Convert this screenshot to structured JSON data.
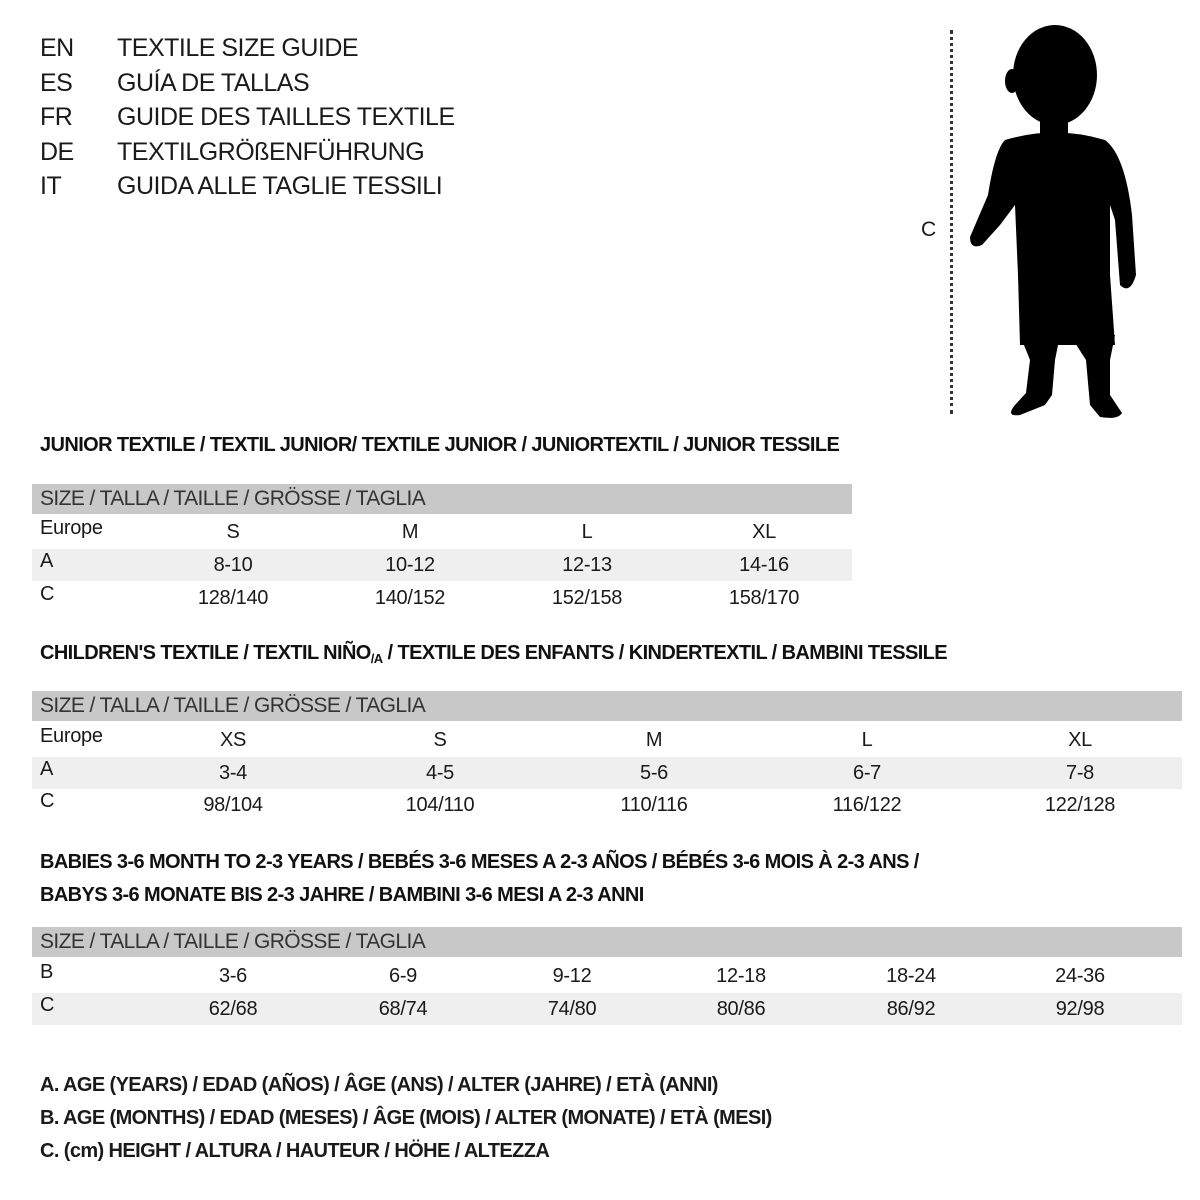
{
  "languages": [
    {
      "code": "EN",
      "title": "TEXTILE SIZE GUIDE"
    },
    {
      "code": "ES",
      "title": "GUÍA DE TALLAS"
    },
    {
      "code": "FR",
      "title": "GUIDE DES TAILLES TEXTILE"
    },
    {
      "code": "DE",
      "title": "TEXTILGRÖßENFÜHRUNG"
    },
    {
      "code": "IT",
      "title": "GUIDA ALLE TAGLIE TESSILI"
    }
  ],
  "figure": {
    "measure_label": "C",
    "icon": "child-silhouette"
  },
  "size_header": "SIZE / TALLA / TAILLE / GRÖSSE / TAGLIA",
  "colors": {
    "header_bg": "#c8c8c8",
    "shade_bg": "#efefef"
  },
  "junior": {
    "title": "JUNIOR TEXTILE / TEXTIL JUNIOR/ TEXTILE JUNIOR / JUNIORTEXTIL / JUNIOR TESSILE",
    "rows": [
      {
        "label": "Europe",
        "values": [
          "S",
          "M",
          "L",
          "XL"
        ]
      },
      {
        "label": "A",
        "values": [
          "8-10",
          "10-12",
          "12-13",
          "14-16"
        ]
      },
      {
        "label": "C",
        "values": [
          "128/140",
          "140/152",
          "152/158",
          "158/170"
        ]
      }
    ]
  },
  "children": {
    "title_a": "CHILDREN'S TEXTILE / TEXTIL NIÑO",
    "title_sub": "/A",
    "title_b": " / TEXTILE DES ENFANTS / KINDERTEXTIL / BAMBINI TESSILE",
    "rows": [
      {
        "label": "Europe",
        "values": [
          "XS",
          "S",
          "M",
          "L",
          "XL"
        ]
      },
      {
        "label": "A",
        "values": [
          "3-4",
          "4-5",
          "5-6",
          "6-7",
          "7-8"
        ]
      },
      {
        "label": "C",
        "values": [
          "98/104",
          "104/110",
          "110/116",
          "116/122",
          "122/128"
        ]
      }
    ]
  },
  "babies": {
    "title_line1": "BABIES 3-6 MONTH TO 2-3 YEARS / BEBÉS 3-6 MESES A 2-3 AÑOS / BÉBÉS 3-6 MOIS À 2-3 ANS /",
    "title_line2": "BABYS 3-6 MONATE BIS 2-3 JAHRE / BAMBINI 3-6 MESI A 2-3 ANNI",
    "rows": [
      {
        "label": "B",
        "values": [
          "3-6",
          "6-9",
          "9-12",
          "12-18",
          "18-24",
          "24-36"
        ]
      },
      {
        "label": "C",
        "values": [
          "62/68",
          "68/74",
          "74/80",
          "80/86",
          "86/92",
          "92/98"
        ]
      }
    ]
  },
  "notes": [
    "A. AGE (YEARS) / EDAD (AÑOS) / ÂGE (ANS) / ALTER (JAHRE) / ETÀ (ANNI)",
    "B. AGE (MONTHS) / EDAD (MESES) / ÂGE (MOIS) / ALTER (MONATE) / ETÀ (MESI)",
    "C. (cm) HEIGHT / ALTURA / HAUTEUR / HÖHE / ALTEZZA"
  ]
}
